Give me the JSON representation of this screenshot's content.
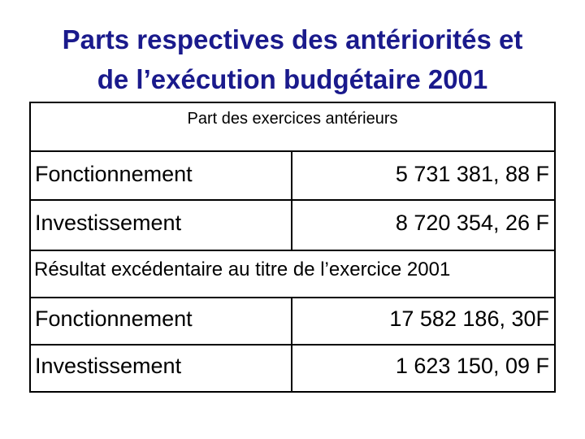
{
  "title": {
    "line1": "Parts respectives des antériorités et",
    "line2": "de l’exécution budgétaire 2001"
  },
  "table": {
    "anterieurs": {
      "header": "Part des exercices antérieurs",
      "rows": [
        {
          "label": "Fonctionnement",
          "value": "5 731 381, 88 F"
        },
        {
          "label": "Investissement",
          "value": "8 720 354, 26 F"
        }
      ]
    },
    "resultat": {
      "header": "Résultat excédentaire au titre de l’exercice 2001",
      "rows": [
        {
          "label": "Fonctionnement",
          "value": "17 582 186, 30F"
        },
        {
          "label": "Investissement",
          "value": "1 623 150, 09 F"
        }
      ]
    }
  },
  "colors": {
    "title": "#1a1a8c",
    "text": "#000000",
    "border": "#000000",
    "background": "#ffffff"
  }
}
